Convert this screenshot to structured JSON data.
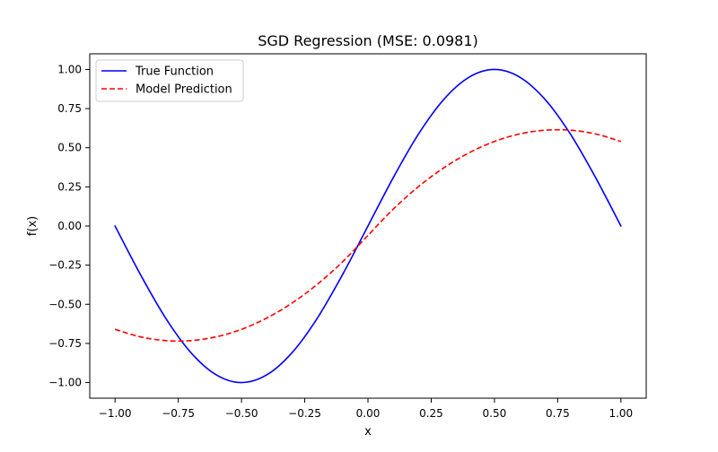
{
  "chart_data": {
    "type": "line",
    "title": "SGD Regression (MSE: 0.0981)",
    "xlabel": "x",
    "ylabel": "f(x)",
    "xlim": [
      -1.1,
      1.1
    ],
    "ylim": [
      -1.1,
      1.1
    ],
    "x_ticks": [
      -1.0,
      -0.75,
      -0.5,
      -0.25,
      0.0,
      0.25,
      0.5,
      0.75,
      1.0
    ],
    "x_tick_labels": [
      "−1.00",
      "−0.75",
      "−0.50",
      "−0.25",
      "0.00",
      "0.25",
      "0.50",
      "0.75",
      "1.00"
    ],
    "y_ticks": [
      -1.0,
      -0.75,
      -0.5,
      -0.25,
      0.0,
      0.25,
      0.5,
      0.75,
      1.0
    ],
    "y_tick_labels": [
      "−1.00",
      "−0.75",
      "−0.50",
      "−0.25",
      "0.00",
      "0.25",
      "0.50",
      "0.75",
      "1.00"
    ],
    "grid": false,
    "legend_position": "upper-left",
    "series": [
      {
        "name": "True Function",
        "color": "#0000ff",
        "style": "solid",
        "x": [
          -1.0,
          -0.9,
          -0.8,
          -0.7,
          -0.6,
          -0.5,
          -0.4,
          -0.3,
          -0.2,
          -0.1,
          0.0,
          0.1,
          0.2,
          0.3,
          0.4,
          0.5,
          0.6,
          0.7,
          0.8,
          0.9,
          1.0
        ],
        "y": [
          0.0,
          -0.309,
          -0.588,
          -0.809,
          -0.951,
          -1.0,
          -0.951,
          -0.809,
          -0.588,
          -0.309,
          0.0,
          0.309,
          0.588,
          0.809,
          0.951,
          1.0,
          0.951,
          0.809,
          0.588,
          0.309,
          0.0
        ]
      },
      {
        "name": "Model Prediction",
        "color": "#ff0000",
        "style": "dashed",
        "x": [
          -1.0,
          -0.9,
          -0.8,
          -0.7,
          -0.6,
          -0.5,
          -0.4,
          -0.3,
          -0.2,
          -0.1,
          0.0,
          0.1,
          0.2,
          0.3,
          0.4,
          0.5,
          0.6,
          0.7,
          0.8,
          0.9,
          1.0
        ],
        "y": [
          -0.66,
          -0.708,
          -0.732,
          -0.732,
          -0.708,
          -0.66,
          -0.588,
          -0.492,
          -0.372,
          -0.228,
          -0.06,
          0.108,
          0.252,
          0.372,
          0.468,
          0.54,
          0.588,
          0.612,
          0.612,
          0.588,
          0.54
        ]
      }
    ]
  }
}
